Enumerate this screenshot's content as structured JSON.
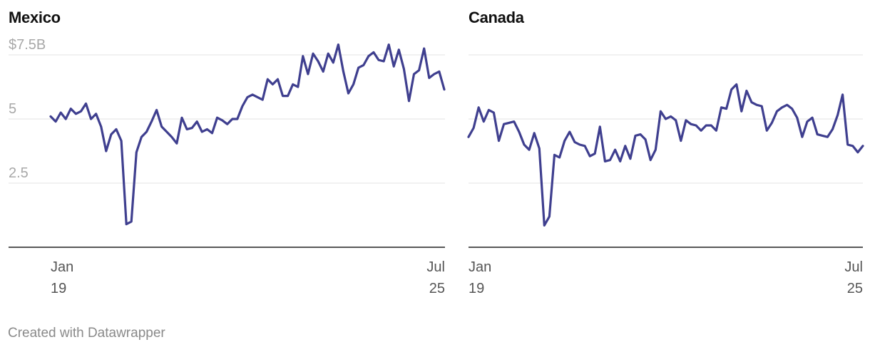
{
  "footer": {
    "credit": "Created with Datawrapper"
  },
  "chart_data": [
    {
      "type": "line",
      "title": "Mexico",
      "x_start": "2019-01",
      "x_end": "2025-07",
      "x_ticks": [
        {
          "x": "2019-01",
          "line1": "Jan",
          "line2": "19"
        },
        {
          "x": "2025-07",
          "line1": "Jul",
          "line2": "25"
        }
      ],
      "ylim": [
        0,
        7.5
      ],
      "y_ticks": [
        {
          "value": 7.5,
          "label": "$7.5B"
        },
        {
          "value": 5,
          "label": "5"
        },
        {
          "value": 2.5,
          "label": "2.5"
        },
        {
          "value": 0,
          "label": ""
        }
      ],
      "grid": true,
      "color": "#3f3f8f",
      "series": [
        {
          "values": [
            5.1,
            4.9,
            5.25,
            5.0,
            5.4,
            5.2,
            5.3,
            5.6,
            5.0,
            5.2,
            4.7,
            3.75,
            4.4,
            4.6,
            4.15,
            0.9,
            1.0,
            3.7,
            4.3,
            4.5,
            4.9,
            5.35,
            4.7,
            4.5,
            4.3,
            4.05,
            5.05,
            4.6,
            4.65,
            4.9,
            4.5,
            4.6,
            4.45,
            5.05,
            4.95,
            4.8,
            5.0,
            5.0,
            5.5,
            5.85,
            5.95,
            5.85,
            5.75,
            6.55,
            6.35,
            6.55,
            5.9,
            5.9,
            6.35,
            6.25,
            7.45,
            6.75,
            7.55,
            7.25,
            6.85,
            7.55,
            7.2,
            7.9,
            6.85,
            6.0,
            6.35,
            7.0,
            7.1,
            7.45,
            7.6,
            7.3,
            7.25,
            7.9,
            7.05,
            7.7,
            6.95,
            5.7,
            6.75,
            6.9,
            7.75,
            6.6,
            6.75,
            6.85,
            6.15
          ]
        }
      ]
    },
    {
      "type": "line",
      "title": "Canada",
      "x_start": "2019-01",
      "x_end": "2025-07",
      "x_ticks": [
        {
          "x": "2019-01",
          "line1": "Jan",
          "line2": "19"
        },
        {
          "x": "2025-07",
          "line1": "Jul",
          "line2": "25"
        }
      ],
      "ylim": [
        0,
        7.5
      ],
      "y_ticks": [
        {
          "value": 7.5,
          "label": ""
        },
        {
          "value": 5,
          "label": ""
        },
        {
          "value": 2.5,
          "label": ""
        },
        {
          "value": 0,
          "label": ""
        }
      ],
      "grid": true,
      "color": "#3f3f8f",
      "series": [
        {
          "values": [
            4.3,
            4.65,
            5.45,
            4.9,
            5.35,
            5.25,
            4.15,
            4.8,
            4.85,
            4.9,
            4.5,
            4.0,
            3.8,
            4.45,
            3.85,
            0.85,
            1.2,
            3.6,
            3.5,
            4.15,
            4.5,
            4.1,
            4.0,
            3.95,
            3.55,
            3.65,
            4.7,
            3.35,
            3.4,
            3.8,
            3.35,
            3.95,
            3.45,
            4.35,
            4.4,
            4.2,
            3.4,
            3.8,
            5.3,
            5.0,
            5.1,
            4.95,
            4.15,
            4.95,
            4.8,
            4.75,
            4.55,
            4.75,
            4.75,
            4.55,
            5.45,
            5.4,
            6.15,
            6.35,
            5.3,
            6.1,
            5.65,
            5.55,
            5.5,
            4.55,
            4.85,
            5.3,
            5.45,
            5.55,
            5.4,
            5.05,
            4.3,
            4.9,
            5.05,
            4.4,
            4.35,
            4.3,
            4.6,
            5.15,
            5.95,
            4.0,
            3.95,
            3.7,
            3.95
          ]
        }
      ]
    }
  ]
}
